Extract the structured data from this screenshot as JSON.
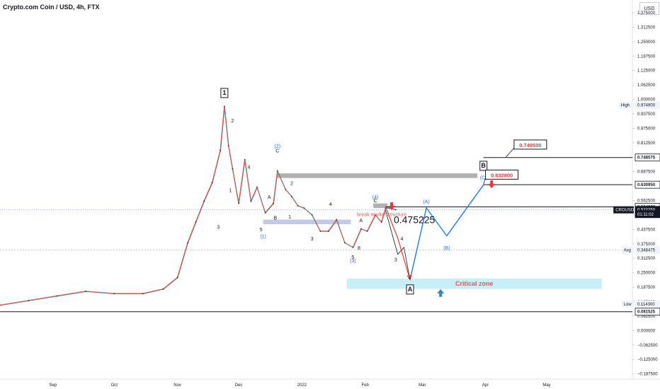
{
  "header": {
    "title": "Crypto.com Coin / USD, 4h, FTX",
    "currency": "USD"
  },
  "chart_data": {
    "type": "line",
    "symbol": "CROUSD",
    "price_scale": {
      "ticks": [
        "1.375000",
        "1.312500",
        "1.250000",
        "1.187500",
        "1.125000",
        "1.062500",
        "1.000000",
        "0.937500",
        "0.875000",
        "0.812500",
        "0.750000",
        "0.687500",
        "0.625000",
        "0.562500",
        "0.500000",
        "0.437500",
        "0.375000",
        "0.312500",
        "0.250000",
        "0.187500",
        "0.125000",
        "0.062500",
        "0.000000",
        "−0.062500",
        "−0.125000",
        "−0.187500"
      ],
      "ylim": [
        -0.21,
        1.43
      ]
    },
    "time_scale": {
      "ticks": [
        "Sep",
        "Oct",
        "Nov",
        "Dec",
        "2022",
        "Feb",
        "Mar",
        "Apr",
        "May"
      ]
    },
    "price_series": {
      "x": [
        "2021-08-06",
        "2021-08-20",
        "2021-09-03",
        "2021-09-17",
        "2021-10-01",
        "2021-10-15",
        "2021-10-25",
        "2021-11-01",
        "2021-11-06",
        "2021-11-10",
        "2021-11-14",
        "2021-11-18",
        "2021-11-22",
        "2021-11-24",
        "2021-11-26",
        "2021-11-28",
        "2021-12-01",
        "2021-12-04",
        "2021-12-07",
        "2021-12-10",
        "2021-12-14",
        "2021-12-18",
        "2021-12-20",
        "2021-12-24",
        "2021-12-27",
        "2021-12-30",
        "2022-01-02",
        "2022-01-06",
        "2022-01-10",
        "2022-01-14",
        "2022-01-18",
        "2022-01-22",
        "2022-01-26",
        "2022-01-30",
        "2022-02-02",
        "2022-02-06",
        "2022-02-09",
        "2022-02-11",
        "2022-02-13",
        "2022-02-16"
      ],
      "y": [
        0.11,
        0.13,
        0.15,
        0.17,
        0.16,
        0.16,
        0.18,
        0.23,
        0.38,
        0.47,
        0.56,
        0.64,
        0.78,
        0.97,
        0.8,
        0.7,
        0.55,
        0.74,
        0.56,
        0.62,
        0.51,
        0.55,
        0.69,
        0.61,
        0.58,
        0.54,
        0.53,
        0.5,
        0.43,
        0.43,
        0.48,
        0.38,
        0.36,
        0.44,
        0.43,
        0.5,
        0.47,
        0.53,
        0.53,
        0.5225
      ]
    },
    "projection_black": {
      "x": [
        "2022-02-11",
        "2022-02-17",
        "2022-02-20",
        "2022-02-23"
      ],
      "y": [
        0.52,
        0.33,
        0.36,
        0.22
      ]
    },
    "projection_red": {
      "x": [
        "2022-02-11",
        "2022-02-17",
        "2022-02-23"
      ],
      "y": [
        0.535,
        0.4,
        0.22
      ]
    },
    "projection_blue": {
      "x": [
        "2022-02-23",
        "2022-03-03",
        "2022-03-13",
        "2022-03-31"
      ],
      "y": [
        0.22,
        0.53,
        0.41,
        0.63
      ]
    },
    "horizontal_lines": [
      {
        "price": 0.748575,
        "label": "0.748575",
        "from": "2022-03-31"
      },
      {
        "price": 0.63095,
        "label": "0.630950",
        "from": "2022-03-31"
      },
      {
        "price": 0.5349,
        "label": "0.534900",
        "from": "2022-02-11"
      },
      {
        "price": 0.081525,
        "label": "0.081525",
        "from": "2021-08-06"
      }
    ],
    "zones": [
      {
        "type": "resistance",
        "x0": "2021-12-20",
        "x1": "2022-03-28",
        "y0": 0.66,
        "y1": 0.68
      },
      {
        "type": "resistance",
        "x0": "2022-02-05",
        "x1": "2022-02-12",
        "y0": 0.53,
        "y1": 0.55
      },
      {
        "type": "support",
        "x0": "2021-12-13",
        "x1": "2022-01-25",
        "y0": 0.46,
        "y1": 0.48
      },
      {
        "type": "critical",
        "label": "Critical zone",
        "x0": "2022-01-23",
        "x1": "2022-05-28",
        "y0": 0.18,
        "y1": 0.225
      }
    ],
    "price_tags": [
      {
        "label": "High",
        "value": "0.974900",
        "y": 0.9749,
        "style": "high"
      },
      {
        "label": "",
        "value": "0.748575",
        "y": 0.748575,
        "style": "line"
      },
      {
        "label": "",
        "value": "0.630950",
        "y": 0.63095,
        "style": "line"
      },
      {
        "label": "",
        "value": "0.534900",
        "y": 0.5349,
        "style": "line"
      },
      {
        "label": "CROUSD",
        "value": "0.522250",
        "y": 0.52225,
        "style": "current"
      },
      {
        "label": "",
        "value": "01:11:02",
        "y": 0.5035,
        "style": "timer"
      },
      {
        "label": "Avg",
        "value": "0.348475",
        "y": 0.348475,
        "style": "avg"
      },
      {
        "label": "Low",
        "value": "0.114300",
        "y": 0.1143,
        "style": "low"
      },
      {
        "label": "",
        "value": "0.081525",
        "y": 0.081525,
        "style": "line"
      }
    ],
    "annotations": {
      "target_box_1": "0.749500",
      "target_box_2": "0.632800",
      "big_price": "0.475225",
      "break_text": "break market structure",
      "wave_1": "1",
      "wave_B": "B",
      "wave_A": "A"
    },
    "wave_labels": [
      {
        "text": "2",
        "x": "2021-11-28",
        "y": 0.9,
        "color": "black"
      },
      {
        "text": "4",
        "x": "2021-12-06",
        "y": 0.7,
        "color": "black"
      },
      {
        "text": "1",
        "x": "2021-11-27",
        "y": 0.6,
        "color": "black"
      },
      {
        "text": "3",
        "x": "2021-11-21",
        "y": 0.44,
        "color": "black"
      },
      {
        "text": "(2)",
        "x": "2021-12-20",
        "y": 0.79,
        "color": "blue"
      },
      {
        "text": "C",
        "x": "2021-12-20",
        "y": 0.77,
        "color": "black"
      },
      {
        "text": "2",
        "x": "2021-12-27",
        "y": 0.63,
        "color": "black"
      },
      {
        "text": "A",
        "x": "2021-12-16",
        "y": 0.57,
        "color": "black"
      },
      {
        "text": "B",
        "x": "2021-12-19",
        "y": 0.48,
        "color": "black"
      },
      {
        "text": "1",
        "x": "2021-12-26",
        "y": 0.485,
        "color": "black"
      },
      {
        "text": "5",
        "x": "2021-12-12",
        "y": 0.43,
        "color": "black"
      },
      {
        "text": "(1)",
        "x": "2021-12-13",
        "y": 0.4,
        "color": "blue"
      },
      {
        "text": "3",
        "x": "2022-01-06",
        "y": 0.39,
        "color": "black"
      },
      {
        "text": "4",
        "x": "2022-01-15",
        "y": 0.54,
        "color": "black"
      },
      {
        "text": "5",
        "x": "2022-01-26",
        "y": 0.31,
        "color": "black"
      },
      {
        "text": "(3)",
        "x": "2022-01-26",
        "y": 0.295,
        "color": "blue"
      },
      {
        "text": "8",
        "x": "2022-01-29",
        "y": 0.35,
        "color": "black"
      },
      {
        "text": "A",
        "x": "2022-01-30",
        "y": 0.47,
        "color": "black"
      },
      {
        "text": "(4)",
        "x": "2022-02-06",
        "y": 0.57,
        "color": "blue"
      },
      {
        "text": "C",
        "x": "2022-02-06",
        "y": 0.555,
        "color": "black"
      },
      {
        "text": "4",
        "x": "2022-02-19",
        "y": 0.39,
        "color": "black"
      },
      {
        "text": "3",
        "x": "2022-02-16",
        "y": 0.3,
        "color": "black"
      },
      {
        "text": "(A)",
        "x": "2022-03-03",
        "y": 0.55,
        "color": "blue"
      },
      {
        "text": "(B)",
        "x": "2022-03-13",
        "y": 0.35,
        "color": "blue"
      },
      {
        "text": "(C)",
        "x": "2022-03-31",
        "y": 0.655,
        "color": "blue"
      },
      {
        "text": "2",
        "x": "2022-02-23",
        "y": 0.225,
        "color": "black"
      }
    ],
    "arrows": [
      {
        "direction": "down",
        "x": "2022-02-14",
        "y": 0.53,
        "color": "#e53935"
      },
      {
        "direction": "down",
        "x": "2022-04-04",
        "y": 0.625,
        "color": "#e53935"
      },
      {
        "direction": "up",
        "x": "2022-03-10",
        "y": 0.17,
        "color": "#2f87c8"
      }
    ],
    "colors": {
      "candle_up": "#26a69a",
      "candle_down": "#ef5350",
      "projection_blue": "#2f7fe8",
      "wave_blue": "#2b6fd6",
      "critical_zone": "#c8eff7",
      "critical_text": "#ef5350",
      "resistance": "#9e9e9e",
      "support": "#b3bde0"
    }
  }
}
